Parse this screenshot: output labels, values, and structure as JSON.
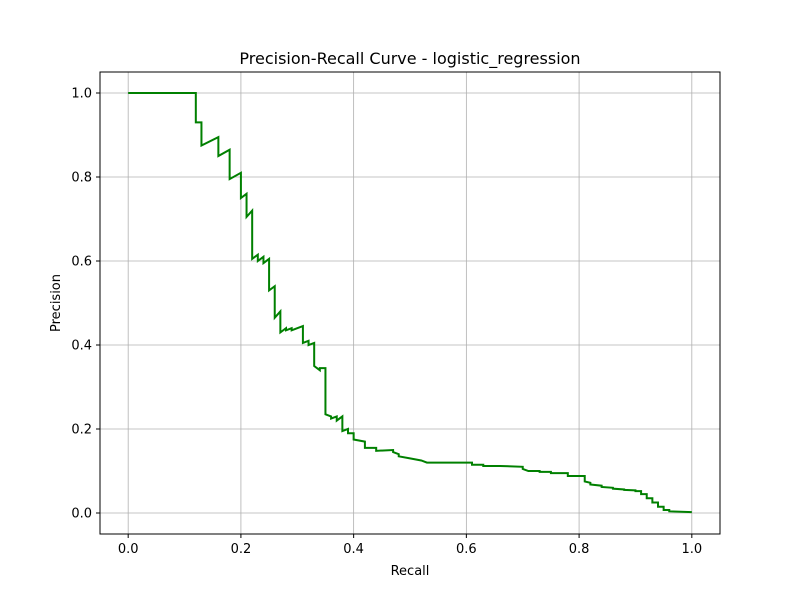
{
  "chart_data": {
    "type": "line",
    "title": "Precision-Recall Curve - logistic_regression",
    "xlabel": "Recall",
    "ylabel": "Precision",
    "xlim": [
      -0.05,
      1.05
    ],
    "ylim": [
      -0.05,
      1.05
    ],
    "xticks": [
      0.0,
      0.2,
      0.4,
      0.6,
      0.8,
      1.0
    ],
    "xtick_labels": [
      "0.0",
      "0.2",
      "0.4",
      "0.6",
      "0.8",
      "1.0"
    ],
    "yticks": [
      0.0,
      0.2,
      0.4,
      0.6,
      0.8,
      1.0
    ],
    "ytick_labels": [
      "0.0",
      "0.2",
      "0.4",
      "0.6",
      "0.8",
      "1.0"
    ],
    "grid": true,
    "step": true,
    "series": [
      {
        "color": "#008000",
        "x": [
          0.0,
          0.12,
          0.12,
          0.13,
          0.13,
          0.16,
          0.16,
          0.18,
          0.18,
          0.2,
          0.2,
          0.21,
          0.21,
          0.22,
          0.22,
          0.23,
          0.23,
          0.24,
          0.24,
          0.25,
          0.25,
          0.26,
          0.26,
          0.27,
          0.27,
          0.28,
          0.28,
          0.29,
          0.29,
          0.31,
          0.31,
          0.32,
          0.32,
          0.33,
          0.33,
          0.34,
          0.34,
          0.35,
          0.35,
          0.36,
          0.36,
          0.37,
          0.37,
          0.38,
          0.38,
          0.39,
          0.39,
          0.4,
          0.4,
          0.42,
          0.42,
          0.44,
          0.44,
          0.47,
          0.47,
          0.48,
          0.48,
          0.5,
          0.5,
          0.52,
          0.52,
          0.53,
          0.53,
          0.57,
          0.57,
          0.61,
          0.61,
          0.63,
          0.63,
          0.66,
          0.66,
          0.7,
          0.7,
          0.71,
          0.71,
          0.73,
          0.73,
          0.75,
          0.75,
          0.78,
          0.78,
          0.81,
          0.81,
          0.82,
          0.82,
          0.84,
          0.84,
          0.86,
          0.86,
          0.88,
          0.88,
          0.9,
          0.9,
          0.91,
          0.91,
          0.92,
          0.92,
          0.93,
          0.93,
          0.94,
          0.94,
          0.95,
          0.95,
          0.96,
          0.96,
          1.0
        ],
        "y": [
          1.0,
          1.0,
          0.93,
          0.93,
          0.875,
          0.895,
          0.85,
          0.865,
          0.795,
          0.81,
          0.75,
          0.76,
          0.705,
          0.72,
          0.605,
          0.615,
          0.6,
          0.61,
          0.595,
          0.605,
          0.53,
          0.54,
          0.465,
          0.48,
          0.43,
          0.44,
          0.435,
          0.44,
          0.435,
          0.445,
          0.405,
          0.41,
          0.4,
          0.405,
          0.35,
          0.34,
          0.345,
          0.345,
          0.235,
          0.23,
          0.225,
          0.23,
          0.22,
          0.23,
          0.195,
          0.2,
          0.19,
          0.19,
          0.175,
          0.17,
          0.155,
          0.155,
          0.148,
          0.15,
          0.145,
          0.14,
          0.135,
          0.13,
          0.13,
          0.125,
          0.125,
          0.12,
          0.12,
          0.12,
          0.12,
          0.12,
          0.115,
          0.115,
          0.112,
          0.112,
          0.112,
          0.11,
          0.105,
          0.1,
          0.1,
          0.1,
          0.098,
          0.098,
          0.095,
          0.095,
          0.088,
          0.088,
          0.075,
          0.072,
          0.068,
          0.065,
          0.062,
          0.06,
          0.058,
          0.056,
          0.055,
          0.054,
          0.052,
          0.052,
          0.045,
          0.045,
          0.035,
          0.035,
          0.025,
          0.025,
          0.015,
          0.015,
          0.007,
          0.007,
          0.004,
          0.002
        ]
      }
    ]
  }
}
